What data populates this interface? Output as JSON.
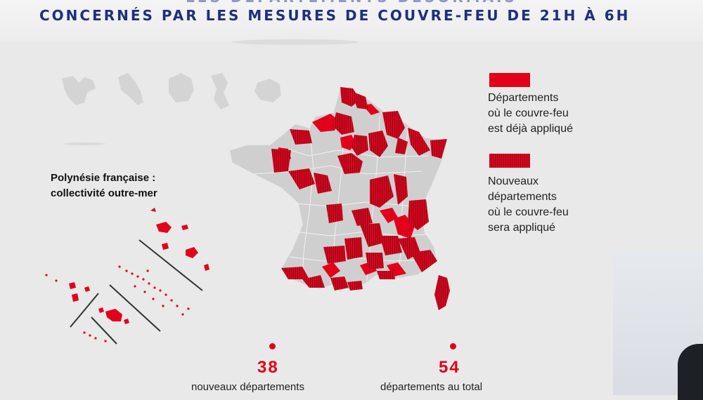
{
  "header": {
    "top_line": "LES DÉPARTEMENTS DÉSORMAIS",
    "title": "CONCERNÉS PAR LES MESURES DE COUVRE-FEU DE 21H À 6H"
  },
  "polynesie": {
    "label_line1": "Polynésie française :",
    "label_line2": "collectivité outre-mer"
  },
  "legend": [
    {
      "style": "solid",
      "lines": [
        "Départements",
        "où le couvre-feu",
        "est déjà appliqué"
      ],
      "color": "#e3001b"
    },
    {
      "style": "hatched",
      "lines": [
        "Nouveaux",
        "départements",
        "où le couvre-feu",
        "sera appliqué"
      ],
      "color": "#b3101f"
    }
  ],
  "stats": [
    {
      "number": "38",
      "label": "nouveaux départements"
    },
    {
      "number": "54",
      "label": "départements au total"
    }
  ],
  "colors": {
    "title": "#1f2f7e",
    "curfew_applied": "#e3001b",
    "unaffected": "#cfcfcf"
  }
}
